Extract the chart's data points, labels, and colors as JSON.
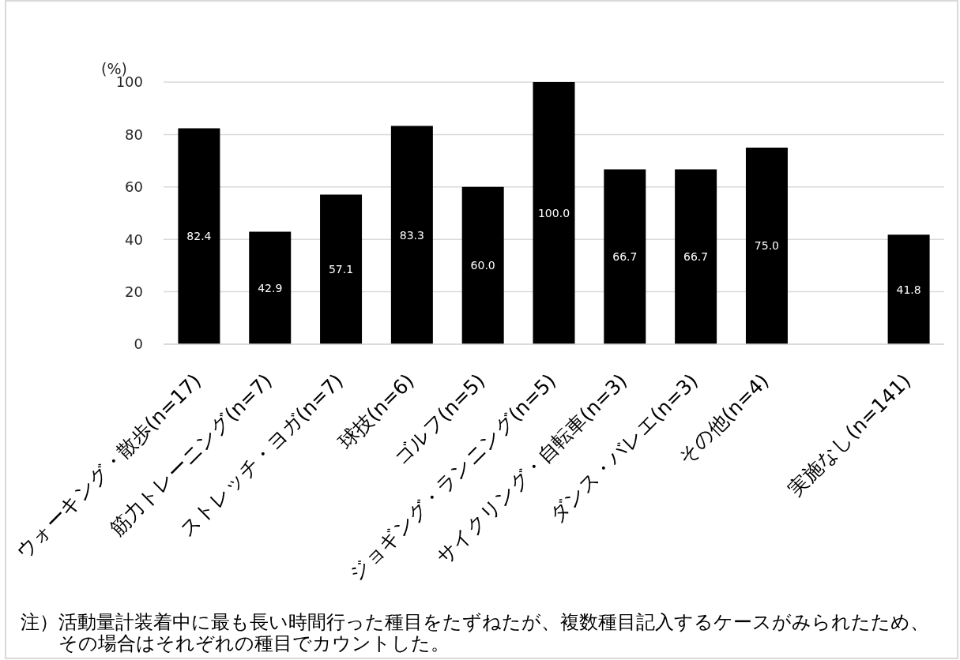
{
  "chart_data": {
    "type": "bar",
    "ylabel": "(%)",
    "categories": [
      "ウォーキング・散歩(n=17)",
      "筋力トレーニング(n=7)",
      "ストレッチ・ヨガ(n=7)",
      "球技(n=6)",
      "ゴルフ(n=5)",
      "ジョギング・ランニング(n=5)",
      "サイクリング・自転車(n=3)",
      "ダンス・バレエ(n=3)",
      "その他(n=4)",
      null,
      "実施なし(n=141)"
    ],
    "values": [
      82.4,
      42.9,
      57.1,
      83.3,
      60.0,
      100.0,
      66.7,
      66.7,
      75.0,
      null,
      41.8
    ],
    "value_labels": [
      "82.4",
      "42.9",
      "57.1",
      "83.3",
      "60.0",
      "100.0",
      "66.7",
      "66.7",
      "75.0",
      null,
      "41.8"
    ],
    "color": "#000000",
    "ylim": [
      0,
      100
    ],
    "yticks": [
      0,
      20,
      40,
      60,
      80,
      100
    ],
    "grid": "y",
    "annotations": [
      "注）活動量計装着中に最も長い時間行った種目をたずねたが、複数種目記入するケースがみられたため、その場合はそれぞれの種目でカウントした。"
    ]
  }
}
